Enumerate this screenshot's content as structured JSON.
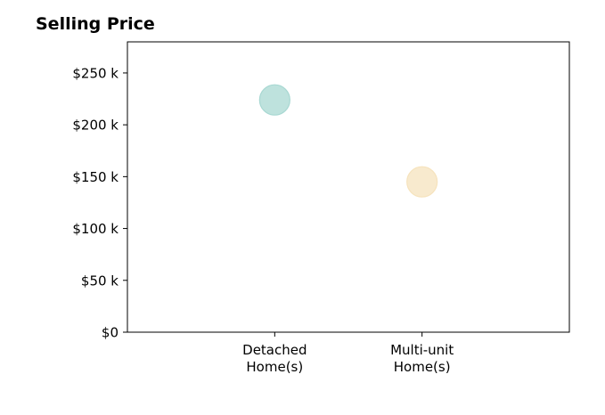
{
  "chart_data": {
    "type": "scatter",
    "title": "Selling Price",
    "xlabel": "",
    "ylabel": "",
    "categories": [
      "Detached\nHome(s)",
      "Multi-unit\nHome(s)"
    ],
    "series": [
      {
        "values": [
          224000,
          145000
        ],
        "colors": [
          "#a8d8d2",
          "#f6e3bd"
        ]
      }
    ],
    "y_ticks": [
      {
        "value": 0,
        "label": "$0"
      },
      {
        "value": 50000,
        "label": "$50 k"
      },
      {
        "value": 100000,
        "label": "$100 k"
      },
      {
        "value": 150000,
        "label": "$150 k"
      },
      {
        "value": 200000,
        "label": "$200 k"
      },
      {
        "value": 250000,
        "label": "$250 k"
      }
    ],
    "ylim": [
      0,
      280000
    ],
    "xlim": [
      -1,
      2
    ],
    "grid": false,
    "legend": "none"
  }
}
